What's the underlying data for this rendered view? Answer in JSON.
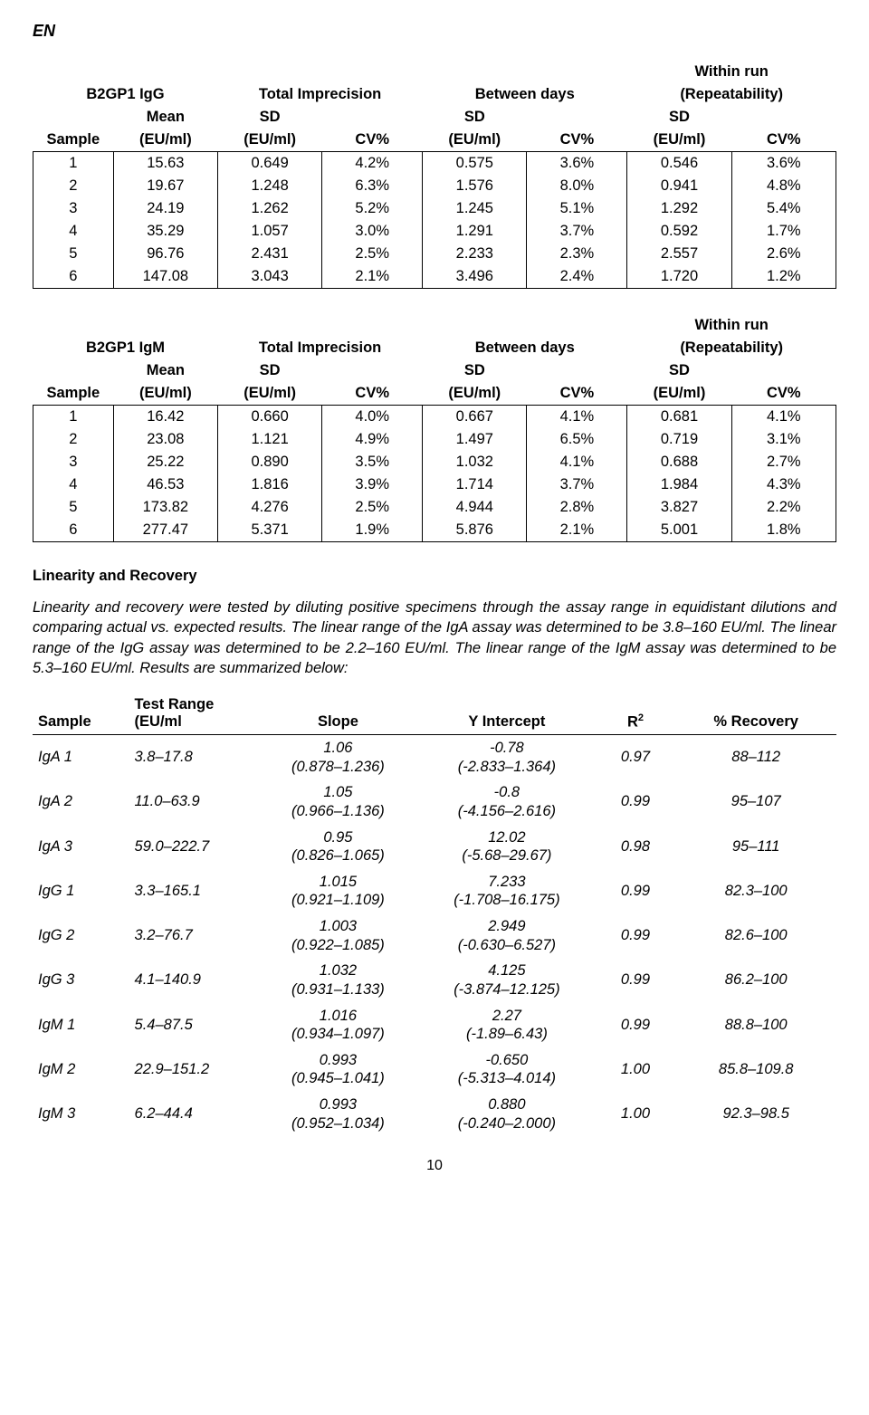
{
  "lang": "EN",
  "page_number": "10",
  "table1": {
    "title_left": "B2GP1 IgG",
    "stat_groups": [
      "Total Imprecision",
      "Between days",
      "Within run\n(Repeatability)"
    ],
    "subhead_left": "Mean",
    "subhead_stat": "SD",
    "units_sample": "Sample",
    "units_mean": "(EU/ml)",
    "units_sd": "(EU/ml)",
    "units_cv": "CV%",
    "rows": [
      [
        "1",
        "15.63",
        "0.649",
        "4.2%",
        "0.575",
        "3.6%",
        "0.546",
        "3.6%"
      ],
      [
        "2",
        "19.67",
        "1.248",
        "6.3%",
        "1.576",
        "8.0%",
        "0.941",
        "4.8%"
      ],
      [
        "3",
        "24.19",
        "1.262",
        "5.2%",
        "1.245",
        "5.1%",
        "1.292",
        "5.4%"
      ],
      [
        "4",
        "35.29",
        "1.057",
        "3.0%",
        "1.291",
        "3.7%",
        "0.592",
        "1.7%"
      ],
      [
        "5",
        "96.76",
        "2.431",
        "2.5%",
        "2.233",
        "2.3%",
        "2.557",
        "2.6%"
      ],
      [
        "6",
        "147.08",
        "3.043",
        "2.1%",
        "3.496",
        "2.4%",
        "1.720",
        "1.2%"
      ]
    ]
  },
  "table2": {
    "title_left": "B2GP1 IgM",
    "rows": [
      [
        "1",
        "16.42",
        "0.660",
        "4.0%",
        "0.667",
        "4.1%",
        "0.681",
        "4.1%"
      ],
      [
        "2",
        "23.08",
        "1.121",
        "4.9%",
        "1.497",
        "6.5%",
        "0.719",
        "3.1%"
      ],
      [
        "3",
        "25.22",
        "0.890",
        "3.5%",
        "1.032",
        "4.1%",
        "0.688",
        "2.7%"
      ],
      [
        "4",
        "46.53",
        "1.816",
        "3.9%",
        "1.714",
        "3.7%",
        "1.984",
        "4.3%"
      ],
      [
        "5",
        "173.82",
        "4.276",
        "2.5%",
        "4.944",
        "2.8%",
        "3.827",
        "2.2%"
      ],
      [
        "6",
        "277.47",
        "5.371",
        "1.9%",
        "5.876",
        "2.1%",
        "5.001",
        "1.8%"
      ]
    ]
  },
  "linearity": {
    "heading": "Linearity and Recovery",
    "paragraph": "Linearity and recovery were tested by diluting positive specimens through the assay range in equidistant dilutions and comparing actual vs. expected results. The linear range of the IgA assay was determined to be 3.8–160 EU/ml. The linear range of the IgG assay was determined to be 2.2–160 EU/ml. The linear range of the IgM assay was determined to be 5.3–160 EU/ml. Results are summarized below:"
  },
  "rec_table": {
    "headers": {
      "sample": "Sample",
      "range_top": "Test Range",
      "range_bot": "(EU/ml",
      "slope": "Slope",
      "yint": "Y Intercept",
      "r2": "R",
      "r2_sup": "2",
      "recovery": "% Recovery"
    },
    "rows": [
      {
        "s": "IgA 1",
        "r": "3.8–17.8",
        "sl": "1.06",
        "slr": "(0.878–1.236)",
        "y": "-0.78",
        "yr": "(-2.833–1.364)",
        "r2": "0.97",
        "rec": "88–112"
      },
      {
        "s": "IgA 2",
        "r": "11.0–63.9",
        "sl": "1.05",
        "slr": "(0.966–1.136)",
        "y": "-0.8",
        "yr": "(-4.156–2.616)",
        "r2": "0.99",
        "rec": "95–107"
      },
      {
        "s": "IgA 3",
        "r": "59.0–222.7",
        "sl": "0.95",
        "slr": "(0.826–1.065)",
        "y": "12.02",
        "yr": "(-5.68–29.67)",
        "r2": "0.98",
        "rec": "95–111"
      },
      {
        "s": "IgG 1",
        "r": "3.3–165.1",
        "sl": "1.015",
        "slr": "(0.921–1.109)",
        "y": "7.233",
        "yr": "(-1.708–16.175)",
        "r2": "0.99",
        "rec": "82.3–100"
      },
      {
        "s": "IgG 2",
        "r": "3.2–76.7",
        "sl": "1.003",
        "slr": "(0.922–1.085)",
        "y": "2.949",
        "yr": "(-0.630–6.527)",
        "r2": "0.99",
        "rec": "82.6–100"
      },
      {
        "s": "IgG 3",
        "r": "4.1–140.9",
        "sl": "1.032",
        "slr": "(0.931–1.133)",
        "y": "4.125",
        "yr": "(-3.874–12.125)",
        "r2": "0.99",
        "rec": "86.2–100"
      },
      {
        "s": "IgM 1",
        "r": "5.4–87.5",
        "sl": "1.016",
        "slr": "(0.934–1.097)",
        "y": "2.27",
        "yr": "(-1.89–6.43)",
        "r2": "0.99",
        "rec": "88.8–100"
      },
      {
        "s": "IgM 2",
        "r": "22.9–151.2",
        "sl": "0.993",
        "slr": "(0.945–1.041)",
        "y": "-0.650",
        "yr": "(-5.313–4.014)",
        "r2": "1.00",
        "rec": "85.8–109.8"
      },
      {
        "s": "IgM 3",
        "r": "6.2–44.4",
        "sl": "0.993",
        "slr": "(0.952–1.034)",
        "y": "0.880",
        "yr": "(-0.240–2.000)",
        "r2": "1.00",
        "rec": "92.3–98.5"
      }
    ]
  },
  "col_widths": {
    "data": [
      "10%",
      "13%",
      "13%",
      "12.5%",
      "13%",
      "12.5%",
      "13%",
      "13%"
    ],
    "rec": [
      "12%",
      "16%",
      "20%",
      "22%",
      "10%",
      "20%"
    ]
  }
}
